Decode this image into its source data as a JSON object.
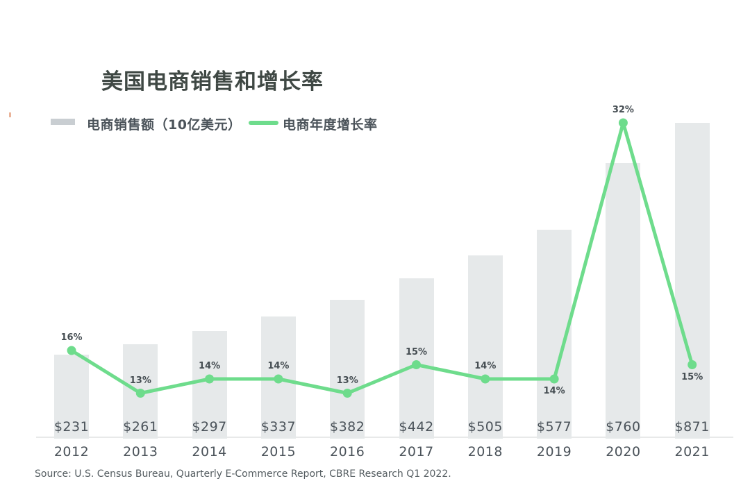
{
  "title": "美国电商销售和增长率",
  "legend": {
    "sales": {
      "label": "电商销售额（10亿美元）"
    },
    "growth": {
      "label": "电商年度增长率"
    }
  },
  "source": "Source: U.S. Census Bureau, Quarterly E-Commerce Report, CBRE Research Q1 2022.",
  "colors": {
    "bar": "#e6e9ea",
    "bar_swatch": "#c9ced2",
    "line": "#6edc8c",
    "title_text": "#3f4844",
    "label_text": "#4b535a",
    "pct_text": "#454d52",
    "source_text": "#555d61",
    "axis_line": "#e8e9e9",
    "artifact": "#eab49a"
  },
  "chart_data": {
    "type": "combo",
    "categories": [
      "2012",
      "2013",
      "2014",
      "2015",
      "2016",
      "2017",
      "2018",
      "2019",
      "2020",
      "2021"
    ],
    "series": [
      {
        "name": "电商销售额（10亿美元）",
        "type": "bar",
        "unit": "billion USD",
        "values": [
          231,
          261,
          297,
          337,
          382,
          442,
          505,
          577,
          760,
          871
        ],
        "data_labels": [
          "$231",
          "$261",
          "$297",
          "$337",
          "$382",
          "$442",
          "$505",
          "$577",
          "$760",
          "$871"
        ],
        "color": "#e6e9ea"
      },
      {
        "name": "电商年度增长率",
        "type": "line",
        "unit": "percent",
        "values": [
          16,
          13,
          14,
          14,
          13,
          15,
          14,
          14,
          32,
          15
        ],
        "data_labels": [
          "16%",
          "13%",
          "14%",
          "14%",
          "13%",
          "15%",
          "14%",
          "14%",
          "32%",
          "15%"
        ],
        "label_side": [
          "above",
          "above",
          "above",
          "above",
          "above",
          "above",
          "above",
          "below",
          "above",
          "below"
        ],
        "color": "#6edc8c"
      }
    ],
    "title": "美国电商销售和增长率",
    "xlabel": "",
    "ylabel": "",
    "legend_position": "top-left",
    "grid": false,
    "value_axes_hidden": true,
    "source": "Source: U.S. Census Bureau, Quarterly E-Commerce Report, CBRE Research Q1 2022."
  }
}
